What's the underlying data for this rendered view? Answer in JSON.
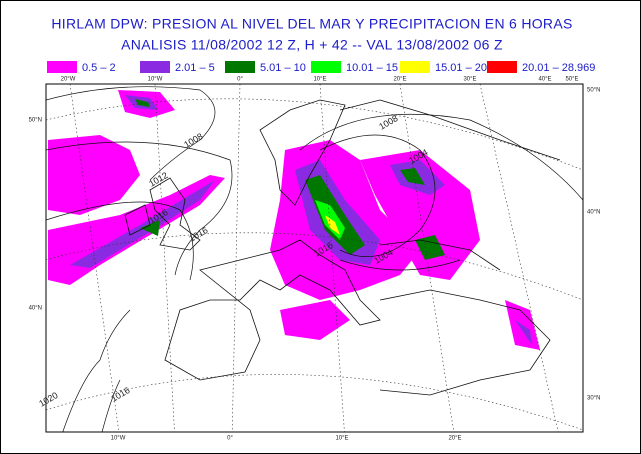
{
  "header": {
    "title_lines": [
      "HIRLAM DPW:  PRESION AL NIVEL DEL MAR Y  PRECIPITACION EN  6 HORAS",
      "ANALISIS 11/08/2002  12 Z,  H + 42  -- VAL 13/08/2002  06 Z"
    ]
  },
  "legend": [
    {
      "label": "0.5  –  2",
      "color": "#ff00ff"
    },
    {
      "label": "2.01  –  5",
      "color": "#8a2be2"
    },
    {
      "label": "5.01  –  10",
      "color": "#007800"
    },
    {
      "label": "10.01  –  15",
      "color": "#00ff00"
    },
    {
      "label": "15.01  –  20",
      "color": "#ffff00"
    },
    {
      "label": "20.01  –  28.969",
      "color": "#ff0000"
    }
  ],
  "map": {
    "top_labels": [
      "20°W",
      "10°W",
      "0°",
      "10°E",
      "20°E",
      "30°E",
      "40°E",
      "50°E"
    ],
    "bottom_labels": [
      "10°W",
      "0°",
      "10°E",
      "20°E"
    ],
    "left_labels": [
      "50°N",
      "40°N"
    ],
    "right_labels": [
      "50°N",
      "40°N",
      "30°N"
    ],
    "isobar_labels": [
      "1008",
      "1012",
      "1016",
      "1016",
      "1008",
      "1004",
      "1004",
      "1016",
      "1020",
      "1016"
    ]
  }
}
